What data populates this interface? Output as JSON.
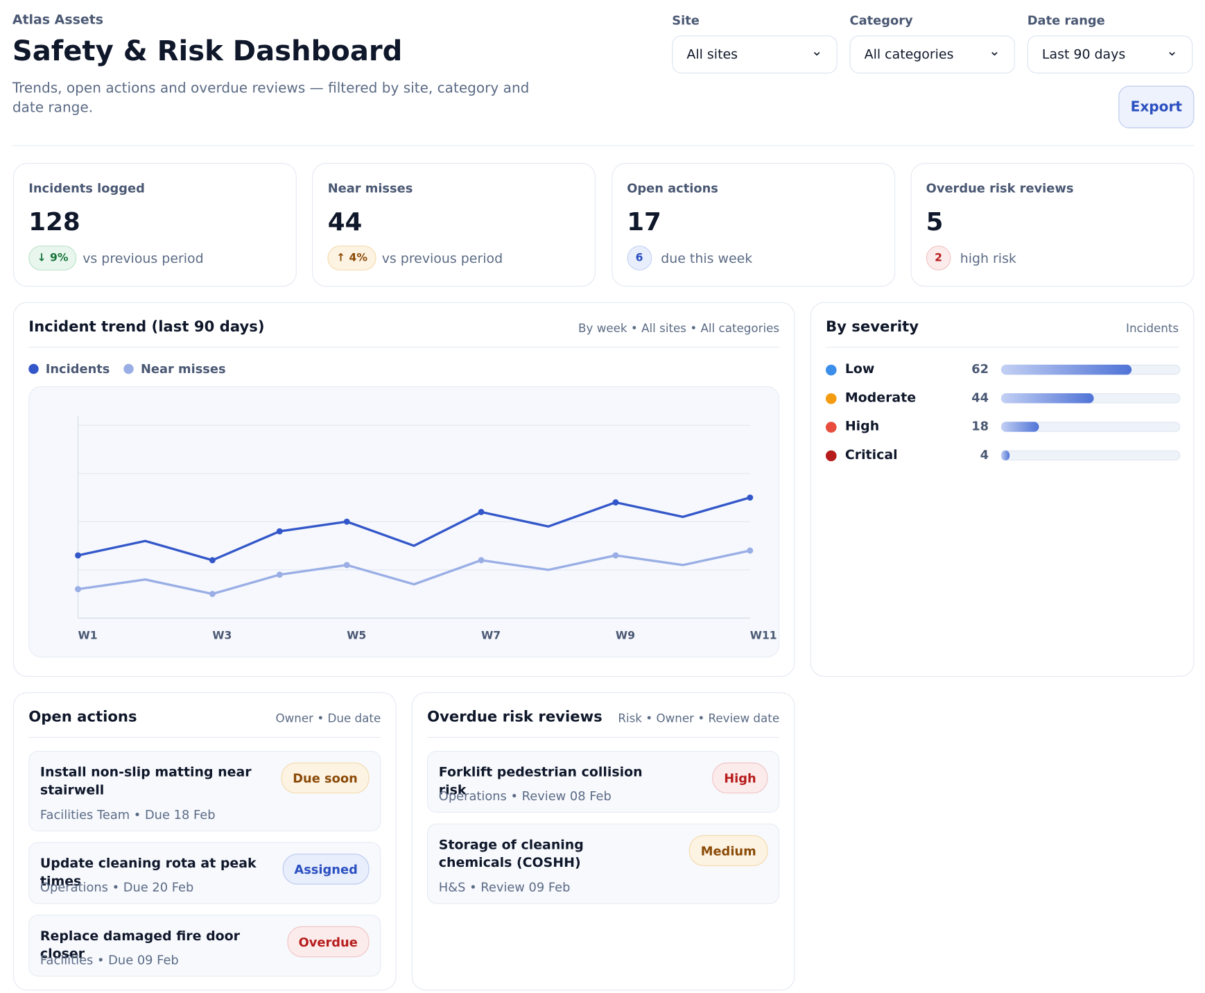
{
  "header": {
    "brand": "Atlas Assets",
    "title": "Safety & Risk Dashboard",
    "subtitle": "Trends, open actions and overdue reviews — filtered by site, category and date range."
  },
  "filters": [
    {
      "label": "Site",
      "value": "All sites"
    },
    {
      "label": "Category",
      "value": "All categories"
    },
    {
      "label": "Date range",
      "value": "Last 90 days"
    }
  ],
  "export": "Export",
  "kpis": [
    {
      "label": "Incidents logged",
      "value": 128,
      "badge": "↓ 9%",
      "note": "vs previous period"
    },
    {
      "label": "Near misses",
      "value": 44,
      "badge": "↑ 4%",
      "note": "vs previous period"
    },
    {
      "label": "Open actions",
      "value": 17,
      "badge": 6,
      "note": "due this week"
    },
    {
      "label": "Overdue risk reviews",
      "value": 5,
      "badge": 2,
      "note": "high risk"
    }
  ],
  "trend": {
    "title": "Incident trend (last 90 days)",
    "meta": "By week • All sites • All categories",
    "chart_data": {
      "type": "line",
      "categories": [
        "W1",
        null,
        "W3",
        null,
        "W5",
        null,
        "W7",
        null,
        "W9",
        null,
        "W11"
      ],
      "ylim": [
        0,
        21
      ],
      "yticks": [
        5,
        10,
        15,
        20
      ],
      "grid": true,
      "series": [
        {
          "name": "Incidents",
          "color": "#3357c9",
          "values": [
            6.5,
            8,
            6,
            9,
            10,
            7.5,
            11,
            9.5,
            12,
            10.5,
            12.5
          ]
        },
        {
          "name": "Near misses",
          "color": "#9aaee6",
          "values": [
            3,
            4,
            2.5,
            4.5,
            5.5,
            3.5,
            6,
            5,
            6.5,
            5.5,
            7
          ]
        }
      ]
    }
  },
  "severity": {
    "title": "By severity",
    "meta": "Incidents",
    "chart_data": {
      "type": "bar",
      "orientation": "horizontal",
      "categories": [
        "Low",
        "Moderate",
        "High",
        "Critical"
      ],
      "colors": [
        "#3b8eea",
        "#f39c12",
        "#e74c3c",
        "#b71c1c"
      ],
      "values": [
        62,
        44,
        18,
        4
      ],
      "xlim": [
        0,
        85
      ]
    }
  },
  "actions": {
    "title": "Open actions",
    "meta": "Owner • Due date",
    "items": [
      {
        "title": "Install non-slip matting near stairwell",
        "meta": "Facilities Team • Due 18 Feb",
        "status": "Due soon"
      },
      {
        "title": "Update cleaning rota at peak times",
        "meta": "Operations • Due 20 Feb",
        "status": "Assigned"
      },
      {
        "title": "Replace damaged fire door closer",
        "meta": "Facilities • Due 09 Feb",
        "status": "Overdue"
      }
    ]
  },
  "reviews": {
    "title": "Overdue risk reviews",
    "meta": "Risk • Owner • Review date",
    "items": [
      {
        "title": "Forklift pedestrian collision risk",
        "meta": "Operations • Review 08 Feb",
        "status": "High"
      },
      {
        "title": "Storage of cleaning chemicals (COSHH)",
        "meta": "H&S • Review 09 Feb",
        "status": "Medium"
      }
    ]
  }
}
